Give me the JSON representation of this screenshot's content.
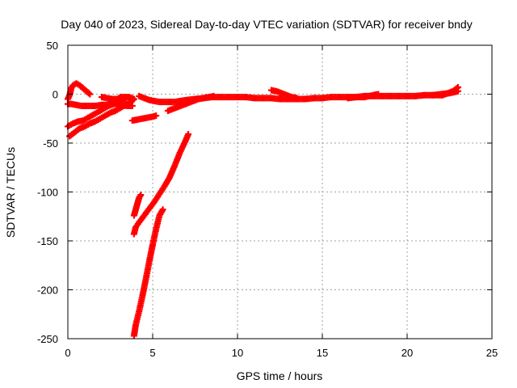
{
  "chart_data": {
    "type": "scatter",
    "title": "Day 040 of 2023, Sidereal Day-to-day VTEC variation (SDTVAR) for receiver bndy",
    "xlabel": "GPS time / hours",
    "ylabel": "SDTVAR / TECUs",
    "xlim": [
      0,
      25
    ],
    "ylim": [
      -250,
      50
    ],
    "xticks": [
      "0",
      "5",
      "10",
      "15",
      "20",
      "25"
    ],
    "yticks": [
      "50",
      "0",
      "-50",
      "-100",
      "-150",
      "-200",
      "-250"
    ],
    "grid": true,
    "colors": {
      "series": "#ff0000",
      "grid": "#a0a0a0",
      "axis": "#000000"
    },
    "series": [
      {
        "values": [
          [
            0.0,
            -5
          ],
          [
            0.1,
            -1
          ],
          [
            0.2,
            6
          ],
          [
            0.3,
            9
          ],
          [
            0.5,
            11
          ],
          [
            0.7,
            9
          ],
          [
            0.9,
            6
          ],
          [
            1.1,
            3
          ],
          [
            1.3,
            0
          ]
        ]
      },
      {
        "values": [
          [
            0.0,
            -10
          ],
          [
            0.2,
            -10
          ],
          [
            0.5,
            -11
          ],
          [
            0.8,
            -12
          ],
          [
            1.0,
            -12
          ],
          [
            1.3,
            -12
          ],
          [
            1.6,
            -12
          ],
          [
            2.0,
            -11
          ],
          [
            2.3,
            -11
          ],
          [
            2.6,
            -10
          ],
          [
            2.9,
            -10
          ],
          [
            3.2,
            -11
          ],
          [
            3.5,
            -12
          ],
          [
            3.8,
            -12
          ]
        ]
      },
      {
        "values": [
          [
            0.0,
            -33
          ],
          [
            0.3,
            -30
          ],
          [
            0.6,
            -28
          ],
          [
            0.9,
            -27
          ],
          [
            1.2,
            -24
          ],
          [
            1.5,
            -21
          ],
          [
            1.8,
            -18
          ],
          [
            2.1,
            -15
          ],
          [
            2.4,
            -12
          ],
          [
            2.7,
            -10
          ],
          [
            3.0,
            -8
          ],
          [
            3.2,
            -6
          ],
          [
            3.4,
            -5
          ]
        ]
      },
      {
        "values": [
          [
            0.1,
            -43
          ],
          [
            0.4,
            -39
          ],
          [
            0.7,
            -35
          ],
          [
            1.0,
            -33
          ],
          [
            1.3,
            -30
          ],
          [
            1.6,
            -28
          ],
          [
            1.9,
            -25
          ],
          [
            2.2,
            -22
          ],
          [
            2.5,
            -19
          ],
          [
            2.8,
            -17
          ],
          [
            3.1,
            -14
          ],
          [
            3.4,
            -11
          ],
          [
            3.7,
            -8
          ],
          [
            3.9,
            -5
          ]
        ]
      },
      {
        "values": [
          [
            2.0,
            -3
          ],
          [
            2.3,
            -4
          ],
          [
            2.6,
            -5
          ],
          [
            2.9,
            -5
          ],
          [
            3.1,
            -3
          ],
          [
            3.3,
            -3
          ],
          [
            3.6,
            -3
          ],
          [
            3.8,
            -4
          ]
        ]
      },
      {
        "values": [
          [
            3.8,
            -27
          ],
          [
            4.1,
            -26
          ],
          [
            4.4,
            -25
          ],
          [
            4.7,
            -24
          ],
          [
            5.0,
            -23
          ],
          [
            5.2,
            -22
          ]
        ]
      },
      {
        "values": [
          [
            4.2,
            -2
          ],
          [
            4.5,
            -4
          ],
          [
            4.8,
            -6
          ],
          [
            5.1,
            -7
          ],
          [
            5.4,
            -8
          ],
          [
            5.7,
            -8
          ],
          [
            6.0,
            -8
          ],
          [
            6.3,
            -8
          ],
          [
            6.6,
            -7
          ],
          [
            7.0,
            -6
          ],
          [
            7.5,
            -5
          ],
          [
            8.0,
            -4
          ],
          [
            8.5,
            -3
          ],
          [
            9.0,
            -3
          ],
          [
            9.5,
            -3
          ],
          [
            10.0,
            -3
          ],
          [
            10.5,
            -3
          ],
          [
            11.0,
            -4
          ],
          [
            11.5,
            -4
          ],
          [
            12.0,
            -4
          ],
          [
            12.5,
            -5
          ],
          [
            13.0,
            -5
          ],
          [
            13.5,
            -5
          ],
          [
            14.0,
            -5
          ],
          [
            14.5,
            -4
          ],
          [
            15.0,
            -4
          ],
          [
            15.5,
            -3
          ],
          [
            16.0,
            -3
          ],
          [
            16.5,
            -3
          ],
          [
            17.0,
            -3
          ],
          [
            17.5,
            -2
          ],
          [
            18.0,
            -2
          ],
          [
            18.5,
            -2
          ],
          [
            19.0,
            -2
          ],
          [
            19.5,
            -2
          ],
          [
            20.0,
            -2
          ],
          [
            20.5,
            -2
          ],
          [
            21.0,
            -1
          ],
          [
            21.5,
            -1
          ],
          [
            22.0,
            0
          ],
          [
            22.5,
            1
          ],
          [
            23.0,
            3
          ]
        ]
      },
      {
        "values": [
          [
            5.9,
            -17
          ],
          [
            6.2,
            -15
          ],
          [
            6.5,
            -13
          ],
          [
            6.8,
            -11
          ],
          [
            7.1,
            -9
          ],
          [
            7.4,
            -7
          ],
          [
            7.7,
            -5
          ],
          [
            8.0,
            -4
          ],
          [
            8.3,
            -3
          ],
          [
            8.6,
            -2
          ]
        ]
      },
      {
        "values": [
          [
            12.0,
            4
          ],
          [
            12.3,
            3
          ],
          [
            12.6,
            1
          ],
          [
            12.9,
            -1
          ],
          [
            13.2,
            -3
          ],
          [
            13.5,
            -4
          ]
        ]
      },
      {
        "values": [
          [
            16.5,
            -4
          ],
          [
            17.0,
            -3
          ],
          [
            17.5,
            -3
          ],
          [
            18.0,
            -1
          ],
          [
            18.3,
            0
          ]
        ]
      },
      {
        "values": [
          [
            21.5,
            -1
          ],
          [
            21.8,
            -1
          ],
          [
            22.1,
            -1
          ],
          [
            22.4,
            1
          ],
          [
            22.7,
            3
          ],
          [
            23.0,
            7
          ]
        ]
      },
      {
        "values": [
          [
            3.9,
            -143
          ],
          [
            4.0,
            -136
          ],
          [
            4.2,
            -131
          ],
          [
            4.5,
            -124
          ],
          [
            4.8,
            -117
          ],
          [
            5.1,
            -110
          ],
          [
            5.4,
            -102
          ],
          [
            5.7,
            -94
          ],
          [
            6.0,
            -85
          ],
          [
            6.3,
            -73
          ],
          [
            6.6,
            -60
          ],
          [
            6.9,
            -49
          ],
          [
            7.1,
            -41
          ]
        ]
      },
      {
        "values": [
          [
            3.9,
            -124
          ],
          [
            4.0,
            -118
          ],
          [
            4.1,
            -112
          ],
          [
            4.2,
            -106
          ],
          [
            4.3,
            -103
          ]
        ]
      },
      {
        "values": [
          [
            3.9,
            -247
          ],
          [
            4.0,
            -236
          ],
          [
            4.2,
            -222
          ],
          [
            4.4,
            -206
          ],
          [
            4.6,
            -189
          ],
          [
            4.8,
            -171
          ],
          [
            5.0,
            -154
          ],
          [
            5.2,
            -138
          ],
          [
            5.4,
            -124
          ],
          [
            5.6,
            -118
          ]
        ]
      }
    ]
  }
}
